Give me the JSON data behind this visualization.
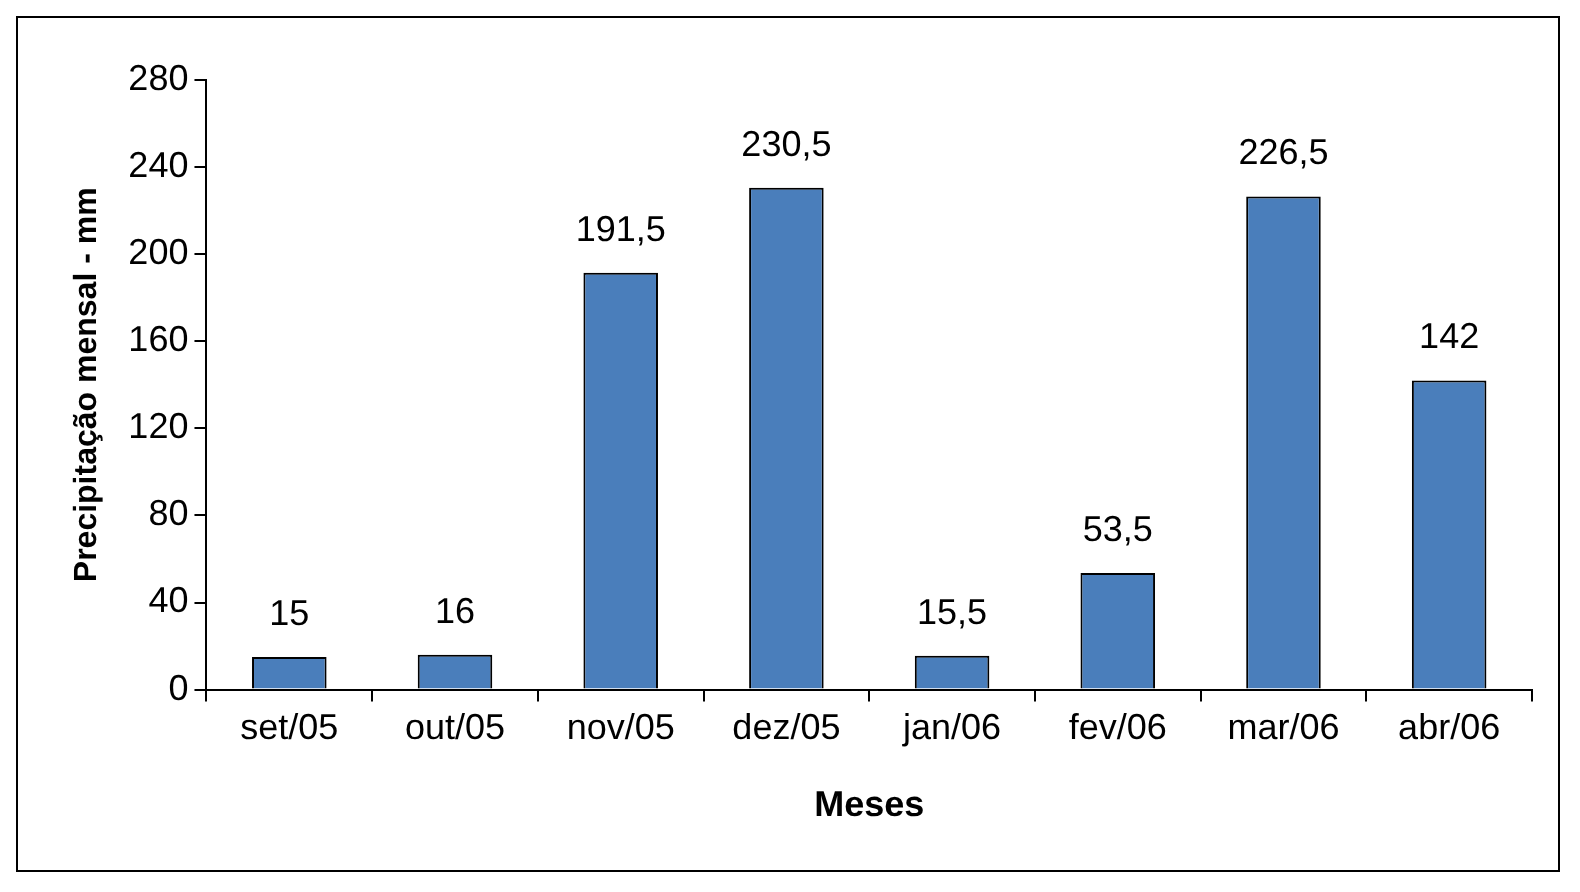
{
  "chart_data": {
    "type": "bar",
    "xlabel": "Meses",
    "ylabel": "Precipitação mensal - mm",
    "categories": [
      "set/05",
      "out/05",
      "nov/05",
      "dez/05",
      "jan/06",
      "fev/06",
      "mar/06",
      "abr/06"
    ],
    "values": [
      15,
      16,
      191.5,
      230.5,
      15.5,
      53.5,
      226.5,
      142
    ],
    "value_labels": [
      "15",
      "16",
      "191,5",
      "230,5",
      "15,5",
      "53,5",
      "226,5",
      "142"
    ],
    "color": "#4a7ebb",
    "ylim": [
      0,
      280
    ],
    "yticks": [
      0,
      40,
      80,
      120,
      160,
      200,
      240,
      280
    ],
    "grid": false,
    "legend": false
  }
}
